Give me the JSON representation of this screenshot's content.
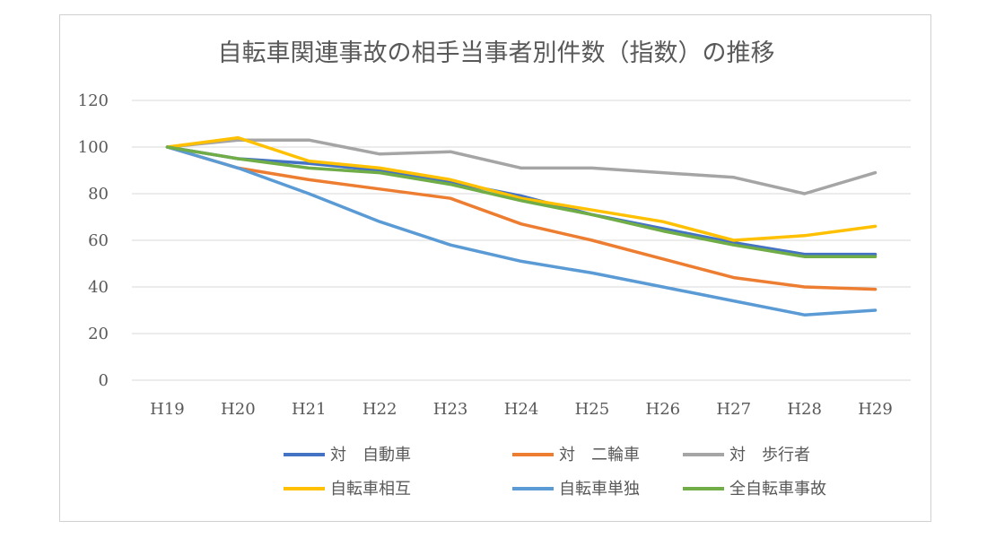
{
  "chart_data": {
    "type": "line",
    "title": "自転車関連事故の相手当事者別件数（指数）の推移",
    "categories": [
      "H19",
      "H20",
      "H21",
      "H22",
      "H23",
      "H24",
      "H25",
      "H26",
      "H27",
      "H28",
      "H29"
    ],
    "ylim": [
      0,
      120
    ],
    "yticks": [
      0,
      20,
      40,
      60,
      80,
      100,
      120
    ],
    "grid": true,
    "legend_position": "bottom",
    "series": [
      {
        "name": "対　自動車",
        "color": "#4472C4",
        "values": [
          100,
          95,
          93,
          90,
          85,
          79,
          71,
          65,
          59,
          54,
          54
        ]
      },
      {
        "name": "対　二輪車",
        "color": "#ED7D31",
        "values": [
          100,
          91,
          86,
          82,
          78,
          67,
          60,
          52,
          44,
          40,
          39
        ]
      },
      {
        "name": "対　歩行者",
        "color": "#A5A5A5",
        "values": [
          100,
          103,
          103,
          97,
          98,
          91,
          91,
          89,
          87,
          80,
          89
        ]
      },
      {
        "name": "自転車相互",
        "color": "#FFC000",
        "values": [
          100,
          104,
          94,
          91,
          86,
          78,
          73,
          68,
          60,
          62,
          66
        ]
      },
      {
        "name": "自転車単独",
        "color": "#5B9BD5",
        "values": [
          100,
          91,
          80,
          68,
          58,
          51,
          46,
          40,
          34,
          28,
          30
        ]
      },
      {
        "name": "全自転車事故",
        "color": "#70AD47",
        "values": [
          100,
          95,
          91,
          89,
          84,
          77,
          71,
          64,
          58,
          53,
          53
        ]
      }
    ]
  }
}
